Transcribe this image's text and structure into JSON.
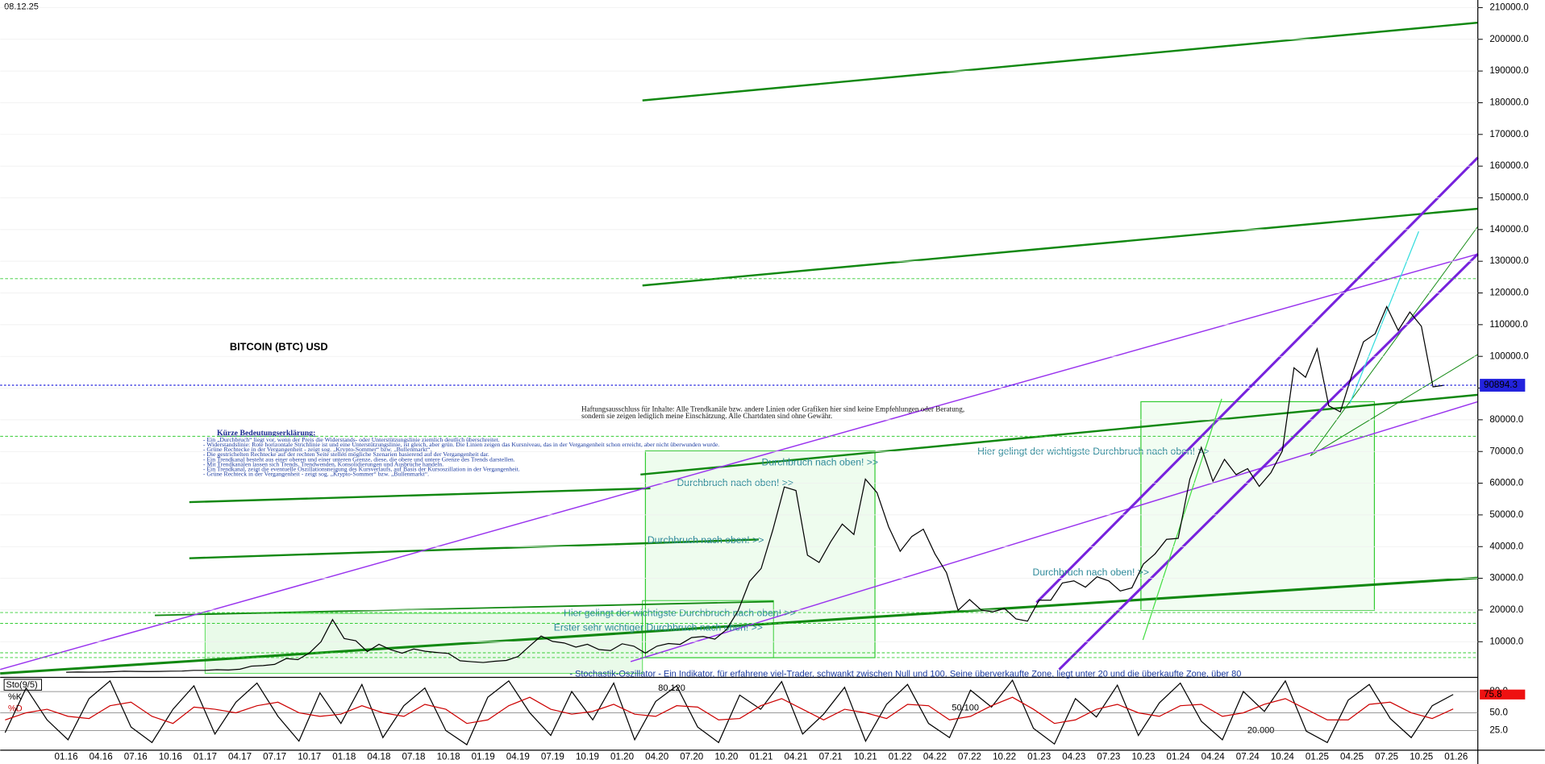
{
  "chart_data": [
    {
      "type": "line",
      "date": "08.12.25",
      "title": "BITCOIN (BTC) USD",
      "color": "#000000",
      "x": [
        "01.16",
        "02.16",
        "03.16",
        "04.16",
        "05.16",
        "06.16",
        "07.16",
        "08.16",
        "09.16",
        "10.16",
        "11.16",
        "12.16",
        "01.17",
        "02.17",
        "03.17",
        "04.17",
        "05.17",
        "06.17",
        "07.17",
        "08.17",
        "09.17",
        "10.17",
        "11.17",
        "12.17",
        "01.18",
        "02.18",
        "03.18",
        "04.18",
        "05.18",
        "06.18",
        "07.18",
        "08.18",
        "09.18",
        "10.18",
        "11.18",
        "12.18",
        "01.19",
        "02.19",
        "03.19",
        "04.19",
        "05.19",
        "06.19",
        "07.19",
        "08.19",
        "09.19",
        "10.19",
        "11.19",
        "12.19",
        "01.20",
        "02.20",
        "03.20",
        "04.20",
        "05.20",
        "06.20",
        "07.20",
        "08.20",
        "09.20",
        "10.20",
        "11.20",
        "12.20",
        "01.21",
        "02.21",
        "03.21",
        "04.21",
        "05.21",
        "06.21",
        "07.21",
        "08.21",
        "09.21",
        "10.21",
        "11.21",
        "12.21",
        "01.22",
        "02.22",
        "03.22",
        "04.22",
        "05.22",
        "06.22",
        "07.22",
        "08.22",
        "09.22",
        "10.22",
        "11.22",
        "12.22",
        "01.23",
        "02.23",
        "03.23",
        "04.23",
        "05.23",
        "06.23",
        "07.23",
        "08.23",
        "09.23",
        "10.23",
        "11.23",
        "12.23",
        "01.24",
        "02.24",
        "03.24",
        "04.24",
        "05.24",
        "06.24",
        "07.24",
        "08.24",
        "09.24",
        "10.24",
        "11.24",
        "12.24",
        "01.25",
        "02.25",
        "03.25",
        "04.25",
        "05.25",
        "06.25",
        "07.25",
        "08.25",
        "09.25",
        "10.25",
        "11.25",
        "12.25"
      ],
      "values": [
        380,
        430,
        415,
        450,
        530,
        670,
        620,
        575,
        610,
        700,
        740,
        960,
        970,
        1190,
        1080,
        1350,
        2300,
        2480,
        2870,
        4700,
        4340,
        6450,
        10000,
        17000,
        11000,
        10300,
        6900,
        9200,
        7500,
        6400,
        7700,
        7000,
        6600,
        6300,
        4000,
        3700,
        3450,
        3850,
        4100,
        5300,
        8600,
        11800,
        10100,
        9600,
        8300,
        9200,
        7500,
        7200,
        9350,
        8600,
        6400,
        8600,
        9450,
        9150,
        11300,
        11650,
        10800,
        13800,
        19700,
        29000,
        33100,
        45200,
        58800,
        57700,
        37300,
        35000,
        41500,
        47100,
        43800,
        61300,
        57000,
        46300,
        38500,
        43200,
        45500,
        37700,
        31800,
        19900,
        23300,
        20000,
        19400,
        20500,
        17200,
        16500,
        23100,
        23100,
        28500,
        29200,
        27200,
        30500,
        29200,
        26000,
        27000,
        34500,
        37700,
        42300,
        42600,
        61200,
        71300,
        60600,
        67500,
        62700,
        64600,
        59000,
        63300,
        70200,
        96400,
        93400,
        102400,
        84400,
        82500,
        94200,
        104600,
        107100,
        115700,
        108200,
        114000,
        109500,
        90400,
        90894.3
      ],
      "ylim": [
        0,
        212400
      ],
      "yticks": [
        {
          "value": 10000,
          "label": "10000.0"
        },
        {
          "value": 20000,
          "label": "20000.0"
        },
        {
          "value": 30000,
          "label": "30000.0"
        },
        {
          "value": 40000,
          "label": "40000.0"
        },
        {
          "value": 50000,
          "label": "50000.0"
        },
        {
          "value": 60000,
          "label": "60000.0"
        },
        {
          "value": 70000,
          "label": "70000.0"
        },
        {
          "value": 80000,
          "label": "80000.0"
        },
        {
          "value": 90000,
          "label": "90000.0"
        },
        {
          "value": 100000,
          "label": "100000.0"
        },
        {
          "value": 110000,
          "label": "110000.0"
        },
        {
          "value": 120000,
          "label": "120000.0"
        },
        {
          "value": 130000,
          "label": "130000.0"
        },
        {
          "value": 140000,
          "label": "140000.0"
        },
        {
          "value": 150000,
          "label": "150000.0"
        },
        {
          "value": 160000,
          "label": "160000.0"
        },
        {
          "value": 170000,
          "label": "170000.0"
        },
        {
          "value": 180000,
          "label": "180000.0"
        },
        {
          "value": 190000,
          "label": "190000.0"
        },
        {
          "value": 200000,
          "label": "200000.0"
        },
        {
          "value": 210000,
          "label": "210000.0"
        }
      ],
      "xticks": [
        "01.16",
        "04.16",
        "07.16",
        "10.16",
        "01.17",
        "04.17",
        "07.17",
        "10.17",
        "01.18",
        "04.18",
        "07.18",
        "10.18",
        "01.19",
        "04.19",
        "07.19",
        "10.19",
        "01.20",
        "04.20",
        "07.20",
        "10.20",
        "01.21",
        "04.21",
        "07.21",
        "10.21",
        "01.22",
        "04.22",
        "07.22",
        "10.22",
        "01.23",
        "04.23",
        "07.23",
        "10.23",
        "01.24",
        "04.24",
        "07.24",
        "10.24",
        "01.25",
        "04.25",
        "07.25",
        "10.25",
        "01.26"
      ],
      "levels": [
        124500,
        74800,
        19200,
        15800,
        6500,
        5000
      ],
      "level_color": "#33cc33",
      "last_price_color": "#2222dd",
      "grid": true,
      "annotations": [
        "Durchbruch nach oben! >>",
        "Durchbruch nach oben! >>",
        "Durchbruch nach oben! >>",
        "Durchbruch nach oben! >>",
        "Hier gelingt der wichtigste Durchbruch nach oben! >>",
        "Hier gelingt der wichtigste Durchbruch nach oben! >>",
        "Erster sehr wichtiger Durchbruch nach oben! >>",
        "Haftungsausschluss für Inhalte: Alle Trendkanäle bzw. andere Linien oder Grafiken hier sind keine Empfehlungen oder Beratung,",
        "sondern sie zeigen lediglich meine Einschätzung. Alle Chartdaten sind ohne Gewähr."
      ],
      "legend_title": "Kürze Bedeutungserklärung:",
      "legend_lines": [
        "- Ein „Durchbruch“ liegt vor, wenn der Preis die Widerstands- oder Unterstützungslinie ziemlich deutlich überschreitet.",
        "- Widerstandslinie: Rote horizontale Strichlinie ist und eine Unterstützungslinie, ist gleich, aber grün. Die Linien zeigen das Kursniveau, das in der Vergangenheit schon erreicht, aber nicht überwunden wurde.",
        "- Grüne Rechtecke in der Vergangenheit - zeigt sog. „Krypto-Sommer“ bzw. „Bullenmarkt“.",
        "- Die gestrichelten Rechtecke auf der rechten Seite stellen mögliche Szenarien basierend auf der Vergangenheit dar.",
        "- Ein Trendkanal besteht aus einer oberen und einer unteren Grenze, diese, die obere und untere Grenze des Trends darstellen.",
        "- Mit Trendkanälen lassen sich Trends, Trendwenden, Konsolidierungen und Ausbrüche handeln.",
        "- Ein Trendkanal, zeigt die eventuelle Oszillationsneigung des Kursverlaufs, auf Basis der Kursoszillation in der Vergangenheit.",
        "- Grüne Rechteck in der Vergangenheit - zeigt sog. „Krypto-Sommer“ bzw. „Bullenmarkt“."
      ],
      "footnote": "- Stochastik-Oszillator - Ein Indikator, für erfahrene viel-Trader, schwankt zwischen Null und 100. Seine überverkaufte Zone, liegt unter 20 und die überkaufte Zone, über 80"
    },
    {
      "type": "line",
      "title": "Sto(9/5)",
      "series": [
        {
          "name": "%K",
          "color": "#000000",
          "values": [
            22,
            85,
            40,
            12,
            70,
            95,
            30,
            8,
            55,
            88,
            20,
            65,
            92,
            45,
            10,
            78,
            35,
            90,
            15,
            60,
            85,
            25,
            5,
            72,
            95,
            50,
            18,
            80,
            40,
            92,
            12,
            66,
            88,
            30,
            8,
            75,
            55,
            94,
            20,
            48,
            86,
            10,
            62,
            90,
            35,
            15,
            82,
            58,
            96,
            28,
            6,
            70,
            44,
            89,
            18,
            64,
            92,
            38,
            12,
            80,
            52,
            95,
            24,
            8,
            68,
            90,
            42,
            15,
            60,
            75.8
          ]
        },
        {
          "name": "%D",
          "color": "#cc0000",
          "values": [
            40,
            50,
            55,
            45,
            42,
            60,
            65,
            45,
            35,
            58,
            55,
            50,
            60,
            65,
            50,
            45,
            48,
            60,
            50,
            45,
            62,
            55,
            35,
            40,
            60,
            72,
            55,
            48,
            52,
            62,
            48,
            45,
            60,
            58,
            40,
            42,
            60,
            70,
            55,
            40,
            55,
            50,
            42,
            62,
            60,
            40,
            45,
            60,
            72,
            55,
            35,
            40,
            55,
            62,
            50,
            45,
            60,
            62,
            45,
            50,
            62,
            70,
            55,
            40,
            40,
            62,
            65,
            50,
            42,
            55.4
          ]
        }
      ],
      "ylim": [
        0,
        100
      ],
      "yticks": [
        {
          "value": 25,
          "label": "25.0"
        },
        {
          "value": 50,
          "label": "50.0"
        },
        {
          "value": 80,
          "label": "80.0"
        }
      ],
      "annotations": [
        "80.120",
        "50.100",
        "20.000"
      ]
    }
  ]
}
